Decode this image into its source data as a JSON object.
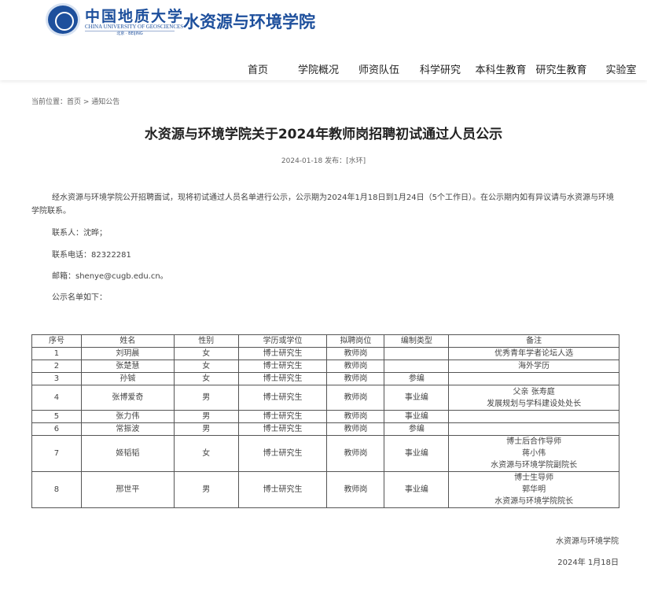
{
  "header": {
    "university_cn": "中国地质大学",
    "university_en": "CHINA UNIVERSITY OF GEOSCIENCES",
    "university_city": "北京 · BEIJING",
    "school": "水资源与环境学院"
  },
  "nav": [
    "首页",
    "学院概况",
    "师资队伍",
    "科学研究",
    "本科生教育",
    "研究生教育",
    "实验室"
  ],
  "breadcrumb": "当前位置：首页 > 通知公告",
  "article": {
    "title": "水资源与环境学院关于2024年教师岗招聘初试通过人员公示",
    "meta": "2024-01-18 发布：[水环]",
    "intro": "经水资源与环境学院公开招聘面试，现将初试通过人员名单进行公示，公示期为2024年1月18日到1月24日（5个工作日）。在公示期内如有异议请与水资源与环境学院联系。",
    "contact": "联系人：沈晔；",
    "phone": "联系电话：82322281",
    "email": "邮箱：shenye@cugb.edu.cn。",
    "list_intro": "公示名单如下："
  },
  "table": {
    "headers": [
      "序号",
      "姓名",
      "性别",
      "学历或学位",
      "拟聘岗位",
      "编制类型",
      "备注"
    ],
    "rows": [
      [
        "1",
        "刘玥晨",
        "女",
        "博士研究生",
        "教师岗",
        "",
        [
          "优秀青年学者论坛人选"
        ]
      ],
      [
        "2",
        "张楚慧",
        "女",
        "博士研究生",
        "教师岗",
        "",
        [
          "海外学历"
        ]
      ],
      [
        "3",
        "孙铖",
        "女",
        "博士研究生",
        "教师岗",
        "参编",
        []
      ],
      [
        "4",
        "张博爱奇",
        "男",
        "博士研究生",
        "教师岗",
        "事业编",
        [
          "父亲 张寿庭",
          "发展规划与学科建设处处长"
        ]
      ],
      [
        "5",
        "张力伟",
        "男",
        "博士研究生",
        "教师岗",
        "事业编",
        []
      ],
      [
        "6",
        "常振波",
        "男",
        "博士研究生",
        "教师岗",
        "参编",
        []
      ],
      [
        "7",
        "姬韬韬",
        "女",
        "博士研究生",
        "教师岗",
        "事业编",
        [
          "博士后合作导师",
          "蒋小伟",
          "水资源与环境学院副院长"
        ]
      ],
      [
        "8",
        "邢世平",
        "男",
        "博士研究生",
        "教师岗",
        "事业编",
        [
          "博士生导师",
          "郭华明",
          "水资源与环境学院院长"
        ]
      ]
    ]
  },
  "footer": {
    "org": "水资源与环境学院",
    "date": "2024年 1月18日"
  }
}
